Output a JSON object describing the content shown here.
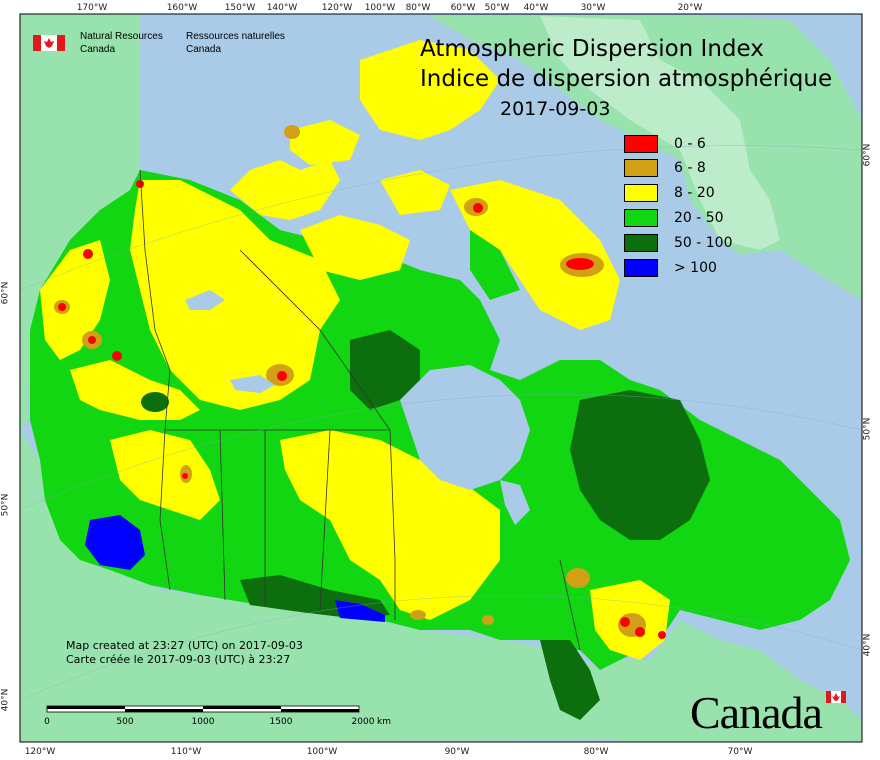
{
  "map": {
    "title_en": "Atmospheric Dispersion Index",
    "title_fr": "Indice de dispersion atmosphérique",
    "date": "2017-09-03",
    "legend": [
      {
        "label": "0 - 6",
        "color": "#ff0000"
      },
      {
        "label": "6 - 8",
        "color": "#d2a017"
      },
      {
        "label": "8 - 20",
        "color": "#ffff00"
      },
      {
        "label": "20 - 50",
        "color": "#11d611"
      },
      {
        "label": "50 - 100",
        "color": "#0d6e0d"
      },
      {
        "label": "> 100",
        "color": "#0000ff"
      }
    ],
    "colors": {
      "ocean": "#a9cbe8",
      "land": "#98e2ad",
      "frame": "#000000"
    },
    "top_longitudes": [
      "170°W",
      "160°W",
      "150°W",
      "140°W",
      "120°W",
      "100°W",
      "80°W",
      "60°W",
      "50°W",
      "40°W",
      "30°W",
      "20°W"
    ],
    "bottom_longitudes": [
      "120°W",
      "110°W",
      "100°W",
      "90°W",
      "80°W",
      "70°W"
    ],
    "left_latitudes": [
      "60°N",
      "50°N",
      "40°N"
    ],
    "right_latitudes": [
      "60°N",
      "50°N",
      "40°N"
    ],
    "agency_en_line1": "Natural Resources",
    "agency_en_line2": "Canada",
    "agency_fr_line1": "Ressources naturelles",
    "agency_fr_line2": "Canada",
    "created_en": "Map created at 23:27 (UTC) on 2017-09-03",
    "created_fr": "Carte créée le 2017-09-03 (UTC) à 23:27",
    "scale_labels": [
      "0",
      "500",
      "1000",
      "1500",
      "2000",
      "km"
    ],
    "wordmark": "Canada"
  }
}
